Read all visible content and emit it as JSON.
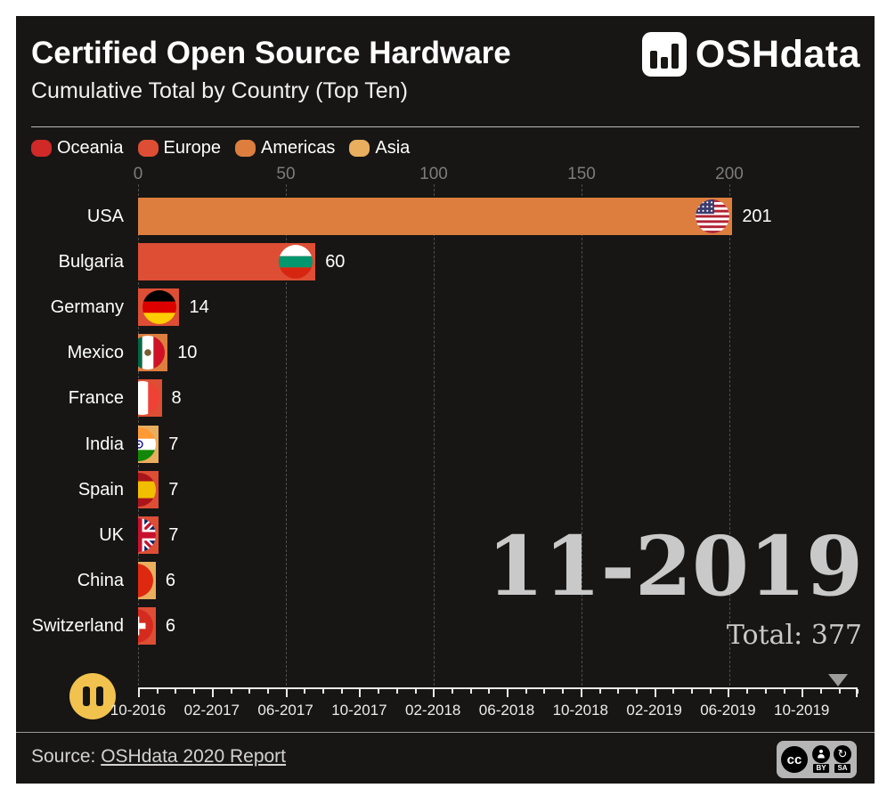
{
  "header": {
    "title": "Certified Open Source Hardware",
    "subtitle": "Cumulative Total by Country (Top Ten)",
    "brand": "OSHdata"
  },
  "legend": {
    "items": [
      {
        "label": "Oceania",
        "color": "#d02927"
      },
      {
        "label": "Europe",
        "color": "#dd4e35"
      },
      {
        "label": "Americas",
        "color": "#dd7e3f"
      },
      {
        "label": "Asia",
        "color": "#e9ae5e"
      }
    ]
  },
  "chart_data": {
    "type": "bar",
    "orientation": "horizontal",
    "title": "Certified Open Source Hardware — Cumulative Total by Country (Top Ten)",
    "x_ticks": [
      0,
      50,
      100,
      150,
      200
    ],
    "xlim": [
      0,
      244
    ],
    "grid": "dashed-vertical",
    "legend_position": "top-left",
    "region_colors": {
      "Oceania": "#d02927",
      "Europe": "#dd4e35",
      "Americas": "#dd7e3f",
      "Asia": "#e9ae5e"
    },
    "rows": [
      {
        "country": "USA",
        "value": 201,
        "region": "Americas",
        "flag": "us"
      },
      {
        "country": "Bulgaria",
        "value": 60,
        "region": "Europe",
        "flag": "bg"
      },
      {
        "country": "Germany",
        "value": 14,
        "region": "Europe",
        "flag": "de"
      },
      {
        "country": "Mexico",
        "value": 10,
        "region": "Americas",
        "flag": "mx"
      },
      {
        "country": "France",
        "value": 8,
        "region": "Europe",
        "flag": "fr"
      },
      {
        "country": "India",
        "value": 7,
        "region": "Asia",
        "flag": "in"
      },
      {
        "country": "Spain",
        "value": 7,
        "region": "Europe",
        "flag": "es"
      },
      {
        "country": "UK",
        "value": 7,
        "region": "Europe",
        "flag": "gb"
      },
      {
        "country": "China",
        "value": 6,
        "region": "Asia",
        "flag": "cn"
      },
      {
        "country": "Switzerland",
        "value": 6,
        "region": "Europe",
        "flag": "ch"
      }
    ]
  },
  "overlay": {
    "period": "11-2019",
    "total": "Total: 377"
  },
  "timeline": {
    "player_state": "paused",
    "tick_labels": [
      "10-2016",
      "02-2017",
      "06-2017",
      "10-2017",
      "02-2018",
      "06-2018",
      "10-2018",
      "02-2019",
      "06-2019",
      "10-2019"
    ]
  },
  "footer": {
    "source_prefix": "Source: ",
    "source_link": "OSHdata 2020 Report",
    "license_badges": [
      "cc",
      "BY",
      "SA"
    ]
  }
}
